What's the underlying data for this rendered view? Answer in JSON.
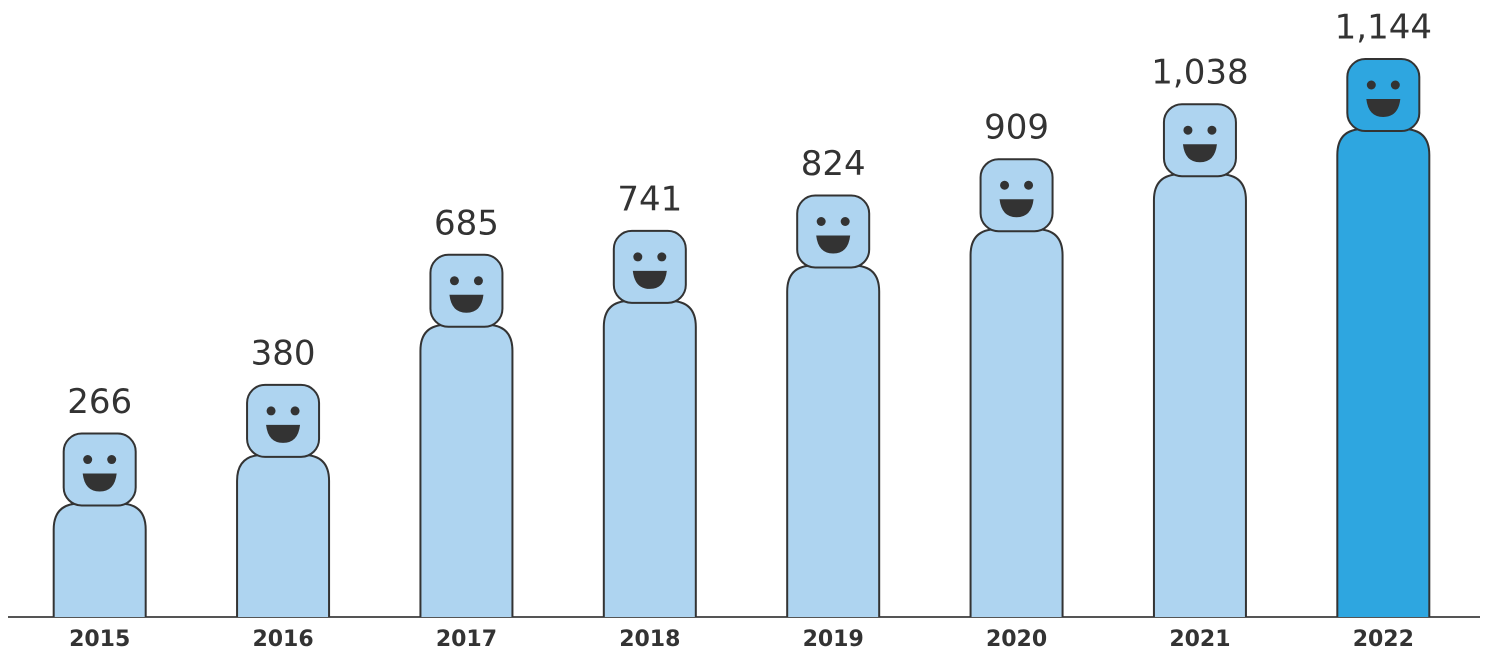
{
  "chart_data": {
    "type": "pictogram-bar",
    "categories": [
      "2015",
      "2016",
      "2017",
      "2018",
      "2019",
      "2020",
      "2021",
      "2022"
    ],
    "values": [
      266,
      380,
      685,
      741,
      824,
      909,
      1038,
      1144
    ],
    "value_labels": [
      "266",
      "380",
      "685",
      "741",
      "824",
      "909",
      "1,038",
      "1,144"
    ],
    "colors": [
      "#aed4f0",
      "#aed4f0",
      "#aed4f0",
      "#aed4f0",
      "#aed4f0",
      "#aed4f0",
      "#aed4f0",
      "#2ea6e0"
    ]
  }
}
